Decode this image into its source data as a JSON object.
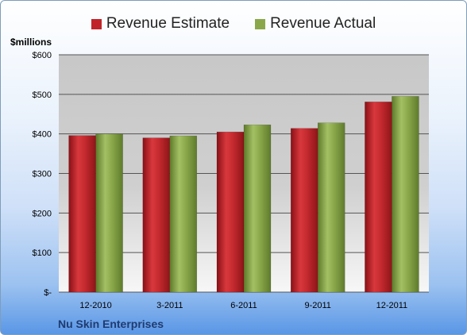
{
  "chart_data": {
    "type": "bar",
    "title": "",
    "ylabel": "$millions",
    "categories": [
      "12-2010",
      "3-2011",
      "6-2011",
      "9-2011",
      "12-2011"
    ],
    "series": [
      {
        "name": "Revenue Estimate",
        "color": "#c0242a",
        "values": [
          396,
          390,
          405,
          414,
          481
        ]
      },
      {
        "name": "Revenue Actual",
        "color": "#8aa84a",
        "values": [
          400,
          395,
          423,
          428,
          495
        ]
      }
    ],
    "ylim": [
      0,
      600
    ],
    "yticks": [
      0,
      100,
      200,
      300,
      400,
      500,
      600
    ],
    "ytick_labels": [
      "$-",
      "$100",
      "$200",
      "$300",
      "$400",
      "$500",
      "$600"
    ],
    "grid": true,
    "legend_position": "top-center"
  },
  "company_name": "Nu Skin Enterprises"
}
